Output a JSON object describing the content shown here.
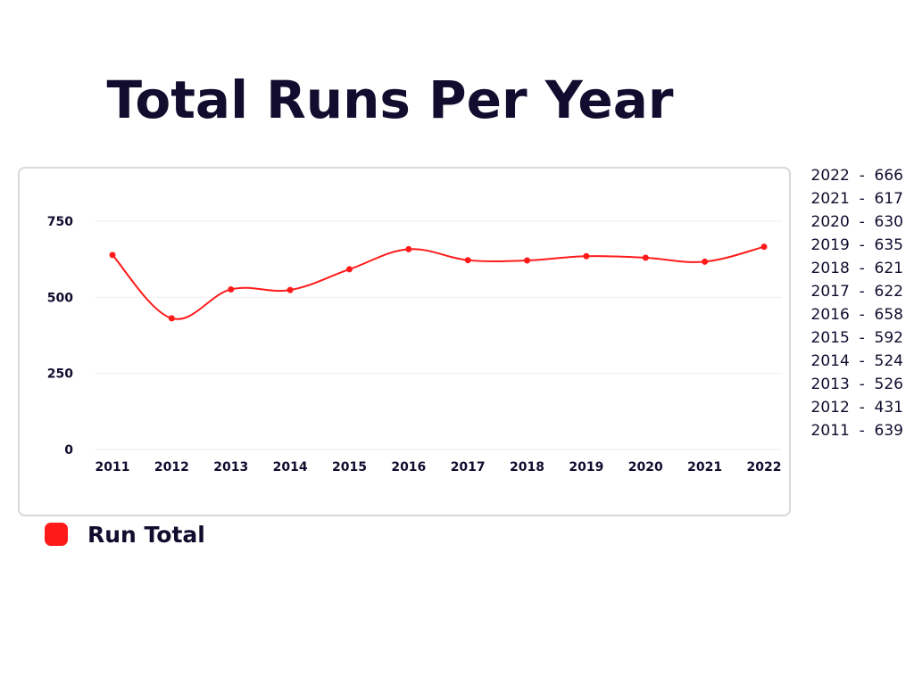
{
  "title": "Total Runs Per Year",
  "colors": {
    "series": "#ff1a1a",
    "text": "#120c2e",
    "grid": "#eeeeee"
  },
  "legend": {
    "label": "Run Total"
  },
  "value_list": [
    "2022  -  666",
    "2021  -  617",
    "2020  -  630",
    "2019  -  635",
    "2018  -  621",
    "2017  -  622",
    "2016  -  658",
    "2015  -  592",
    "2014  -  524",
    "2013  -  526",
    "2012  -  431",
    "2011  -  639"
  ],
  "chart_data": {
    "type": "line",
    "title": "Total Runs Per Year",
    "xlabel": "",
    "ylabel": "",
    "categories": [
      "2011",
      "2012",
      "2013",
      "2014",
      "2015",
      "2016",
      "2017",
      "2018",
      "2019",
      "2020",
      "2021",
      "2022"
    ],
    "series": [
      {
        "name": "Run Total",
        "values": [
          639,
          431,
          526,
          524,
          592,
          658,
          622,
          621,
          635,
          630,
          617,
          666
        ]
      }
    ],
    "ylim": [
      0,
      750
    ],
    "yticks": [
      0,
      250,
      500,
      750
    ],
    "grid": true,
    "legend_position": "bottom-left",
    "smooth": true
  }
}
